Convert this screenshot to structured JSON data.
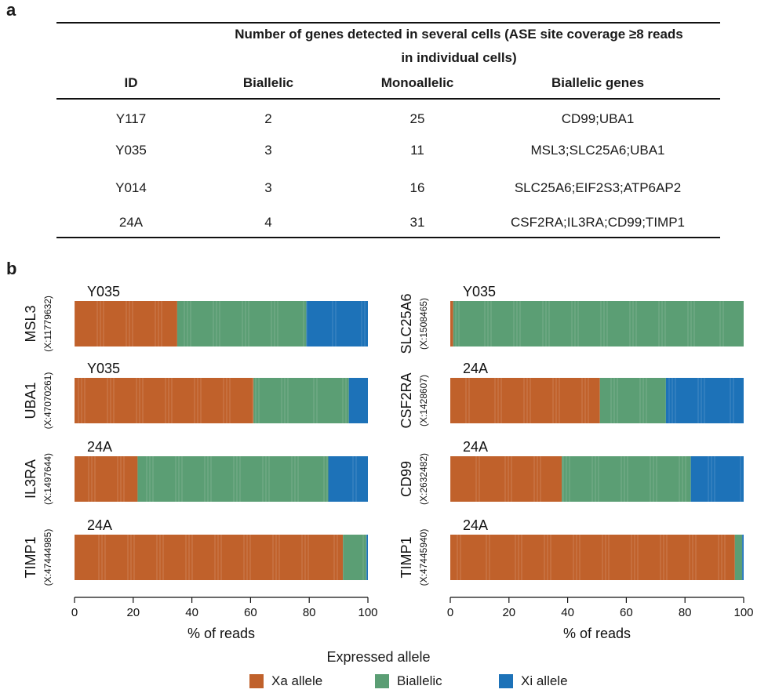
{
  "panel_a": {
    "letter": "a",
    "header_span_line1": "Number of genes detected in several cells (ASE site coverage ≥8 reads",
    "header_span_line2": "in individual cells)",
    "columns": [
      "ID",
      "Biallelic",
      "Monoallelic",
      "Biallelic genes"
    ],
    "rows": [
      [
        "Y117",
        "2",
        "25",
        "CD99;UBA1"
      ],
      [
        "Y035",
        "3",
        "11",
        "MSL3;SLC25A6;UBA1"
      ],
      [
        "Y014",
        "3",
        "16",
        "SLC25A6;EIF2S3;ATP6AP2"
      ],
      [
        "24A",
        "4",
        "31",
        "CSF2RA;IL3RA;CD99;TIMP1"
      ]
    ]
  },
  "panel_b": {
    "letter": "b",
    "xlabel": "% of reads",
    "legend_title": "Expressed allele",
    "legend": [
      {
        "label": "Xa allele",
        "color": "#c0612b"
      },
      {
        "label": "Biallelic",
        "color": "#5b9e74"
      },
      {
        "label": "Xi allele",
        "color": "#1d72b8"
      }
    ]
  },
  "chart_data": [
    {
      "type": "bar",
      "gene": "MSL3",
      "position": "(X:11779632)",
      "sample": "Y035",
      "xlim": [
        0,
        100
      ],
      "xticks": [
        0,
        20,
        40,
        60,
        80,
        100
      ],
      "xlabel": "% of reads",
      "series": [
        {
          "name": "Xa allele",
          "values": [
            35
          ]
        },
        {
          "name": "Biallelic",
          "values": [
            44
          ]
        },
        {
          "name": "Xi allele",
          "values": [
            21
          ]
        }
      ]
    },
    {
      "type": "bar",
      "gene": "UBA1",
      "position": "(X:47070261)",
      "sample": "Y035",
      "xlim": [
        0,
        100
      ],
      "xticks": [
        0,
        20,
        40,
        60,
        80,
        100
      ],
      "xlabel": "% of reads",
      "series": [
        {
          "name": "Xa allele",
          "values": [
            61
          ]
        },
        {
          "name": "Biallelic",
          "values": [
            32.5
          ]
        },
        {
          "name": "Xi allele",
          "values": [
            6.5
          ]
        }
      ]
    },
    {
      "type": "bar",
      "gene": "IL3RA",
      "position": "(X:1497644)",
      "sample": "24A",
      "xlim": [
        0,
        100
      ],
      "xticks": [
        0,
        20,
        40,
        60,
        80,
        100
      ],
      "xlabel": "% of reads",
      "series": [
        {
          "name": "Xa allele",
          "values": [
            21.5
          ]
        },
        {
          "name": "Biallelic",
          "values": [
            65
          ]
        },
        {
          "name": "Xi allele",
          "values": [
            13.5
          ]
        }
      ]
    },
    {
      "type": "bar",
      "gene": "TIMP1",
      "position": "(X:47444985)",
      "sample": "24A",
      "xlim": [
        0,
        100
      ],
      "xticks": [
        0,
        20,
        40,
        60,
        80,
        100
      ],
      "xlabel": "% of reads",
      "series": [
        {
          "name": "Xa allele",
          "values": [
            91.5
          ]
        },
        {
          "name": "Biallelic",
          "values": [
            8
          ]
        },
        {
          "name": "Xi allele",
          "values": [
            0.5
          ]
        }
      ]
    },
    {
      "type": "bar",
      "gene": "SLC25A6",
      "position": "(X:1508465)",
      "sample": "Y035",
      "xlim": [
        0,
        100
      ],
      "xticks": [
        0,
        20,
        40,
        60,
        80,
        100
      ],
      "xlabel": "% of reads",
      "series": [
        {
          "name": "Xa allele",
          "values": [
            1
          ]
        },
        {
          "name": "Biallelic",
          "values": [
            99
          ]
        },
        {
          "name": "Xi allele",
          "values": [
            0
          ]
        }
      ]
    },
    {
      "type": "bar",
      "gene": "CSF2RA",
      "position": "(X:1428607)",
      "sample": "24A",
      "xlim": [
        0,
        100
      ],
      "xticks": [
        0,
        20,
        40,
        60,
        80,
        100
      ],
      "xlabel": "% of reads",
      "series": [
        {
          "name": "Xa allele",
          "values": [
            51
          ]
        },
        {
          "name": "Biallelic",
          "values": [
            22.5
          ]
        },
        {
          "name": "Xi allele",
          "values": [
            26.5
          ]
        }
      ]
    },
    {
      "type": "bar",
      "gene": "CD99",
      "position": "(X:2632482)",
      "sample": "24A",
      "xlim": [
        0,
        100
      ],
      "xticks": [
        0,
        20,
        40,
        60,
        80,
        100
      ],
      "xlabel": "% of reads",
      "series": [
        {
          "name": "Xa allele",
          "values": [
            38
          ]
        },
        {
          "name": "Biallelic",
          "values": [
            44
          ]
        },
        {
          "name": "Xi allele",
          "values": [
            18
          ]
        }
      ]
    },
    {
      "type": "bar",
      "gene": "TIMP1",
      "position": "(X:47445940)",
      "sample": "24A",
      "xlim": [
        0,
        100
      ],
      "xticks": [
        0,
        20,
        40,
        60,
        80,
        100
      ],
      "xlabel": "% of reads",
      "series": [
        {
          "name": "Xa allele",
          "values": [
            97
          ]
        },
        {
          "name": "Biallelic",
          "values": [
            2.5
          ]
        },
        {
          "name": "Xi allele",
          "values": [
            0.5
          ]
        }
      ]
    }
  ]
}
